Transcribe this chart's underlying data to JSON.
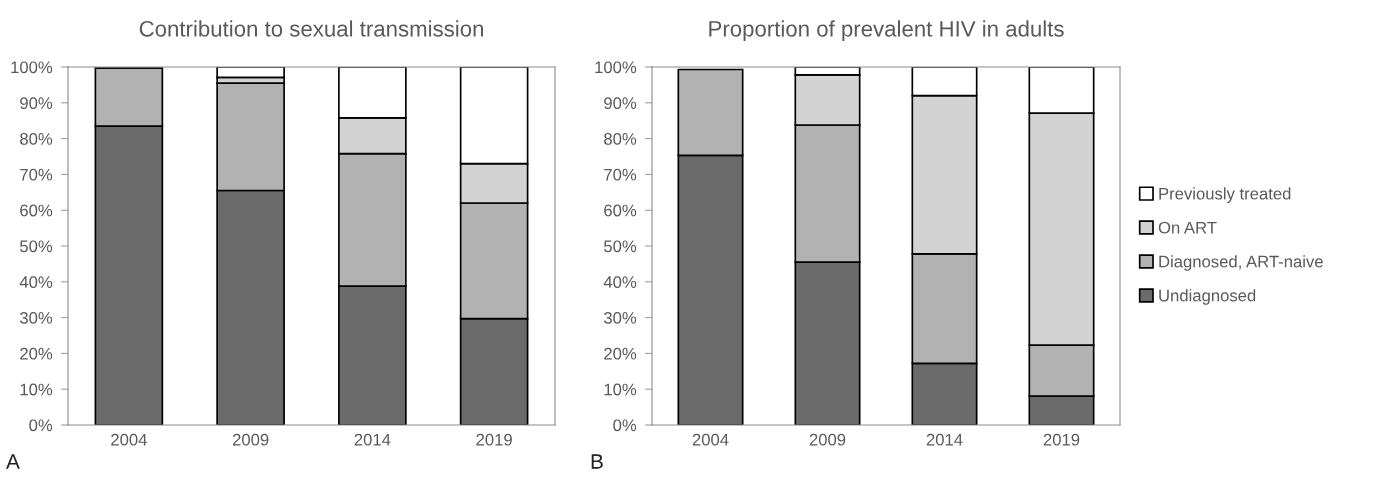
{
  "chart_data": [
    {
      "type": "bar",
      "stacked": true,
      "title": "Contribution to sexual transmission",
      "categories": [
        "2004",
        "2009",
        "2014",
        "2019"
      ],
      "series": [
        {
          "color": "#6b6b6b",
          "values": [
            83.5,
            65.5,
            38.8,
            29.7
          ]
        },
        {
          "color": "#b2b2b2",
          "values": [
            16.2,
            30,
            37,
            32.3
          ]
        },
        {
          "color": "#d3d3d3",
          "values": [
            null,
            1.6,
            10,
            11
          ]
        },
        {
          "color": "#ffffff",
          "values": [
            null,
            2.9,
            14.2,
            27
          ]
        }
      ],
      "ylim": [
        0,
        100
      ],
      "yticks": [
        {
          "value": 0,
          "label": "0%"
        },
        {
          "value": 10,
          "label": "10%"
        },
        {
          "value": 20,
          "label": "20%"
        },
        {
          "value": 30,
          "label": "30%"
        },
        {
          "value": 40,
          "label": "40%"
        },
        {
          "value": 50,
          "label": "50%"
        },
        {
          "value": 60,
          "label": "60%"
        },
        {
          "value": 70,
          "label": "70%"
        },
        {
          "value": 80,
          "label": "80%"
        },
        {
          "value": 90,
          "label": "90%"
        },
        {
          "value": 100,
          "label": "100%"
        }
      ],
      "grid": false,
      "legend": false,
      "annotations": [
        "A"
      ]
    },
    {
      "type": "bar",
      "stacked": true,
      "title": "Proportion of prevalent HIV in adults",
      "categories": [
        "2004",
        "2009",
        "2014",
        "2019"
      ],
      "series": [
        {
          "name": "Undiagnosed",
          "color": "#6b6b6b",
          "values": [
            75.3,
            45.5,
            17.2,
            8.1
          ]
        },
        {
          "name": "Diagnosed, ART-naive",
          "color": "#b2b2b2",
          "values": [
            24,
            38.3,
            30.6,
            14.2
          ]
        },
        {
          "name": "On ART",
          "color": "#d3d3d3",
          "values": [
            null,
            14,
            44.2,
            64.8
          ]
        },
        {
          "name": "Previously treated",
          "color": "#ffffff",
          "values": [
            null,
            2.2,
            8,
            12.9
          ]
        }
      ],
      "ylim": [
        0,
        100
      ],
      "yticks": [
        {
          "value": 0,
          "label": "0%"
        },
        {
          "value": 10,
          "label": "10%"
        },
        {
          "value": 20,
          "label": "20%"
        },
        {
          "value": 30,
          "label": "30%"
        },
        {
          "value": 40,
          "label": "40%"
        },
        {
          "value": 50,
          "label": "50%"
        },
        {
          "value": 60,
          "label": "60%"
        },
        {
          "value": 70,
          "label": "70%"
        },
        {
          "value": 80,
          "label": "80%"
        },
        {
          "value": 90,
          "label": "90%"
        },
        {
          "value": 100,
          "label": "100%"
        }
      ],
      "grid": false,
      "legend": "right",
      "annotations": [
        "B"
      ]
    }
  ]
}
